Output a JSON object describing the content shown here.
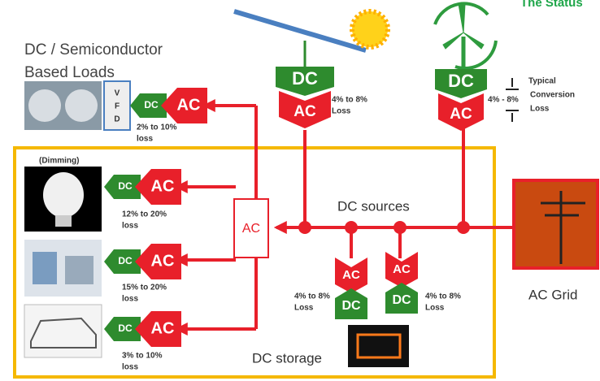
{
  "header": {
    "title": "The Status"
  },
  "loads_title": [
    "DC / Semiconductor",
    "Based Loads"
  ],
  "vfd": [
    "V",
    "F",
    "D"
  ],
  "sources": [
    {
      "dc": "DC",
      "ac": "AC",
      "loss": [
        "4% to 8%",
        "Loss"
      ]
    },
    {
      "dc": "DC",
      "ac": "AC",
      "loss": [
        "4% - 8%"
      ]
    }
  ],
  "legend": [
    "Typical",
    "Conversion",
    "Loss"
  ],
  "loads": [
    {
      "dc": "DC",
      "ac": "AC",
      "loss": [
        "2% to 10%",
        "loss"
      ]
    },
    {
      "note": "(Dimming)",
      "dc": "DC",
      "ac": "AC",
      "loss": [
        "12% to 20%",
        "loss"
      ]
    },
    {
      "dc": "DC",
      "ac": "AC",
      "loss": [
        "15% to 20%",
        "loss"
      ]
    },
    {
      "dc": "DC",
      "ac": "AC",
      "loss": [
        "3% to 10%",
        "loss"
      ]
    }
  ],
  "bus": {
    "ac": "AC",
    "label": "DC sources"
  },
  "grid": "AC Grid",
  "storage": {
    "label": "DC storage",
    "converters": [
      {
        "ac": "AC",
        "dc": "DC",
        "loss": [
          "4% to 8%",
          "Loss"
        ]
      },
      {
        "ac": "AC",
        "dc": "DC",
        "loss": [
          "4% to 8%",
          "Loss"
        ]
      }
    ]
  }
}
